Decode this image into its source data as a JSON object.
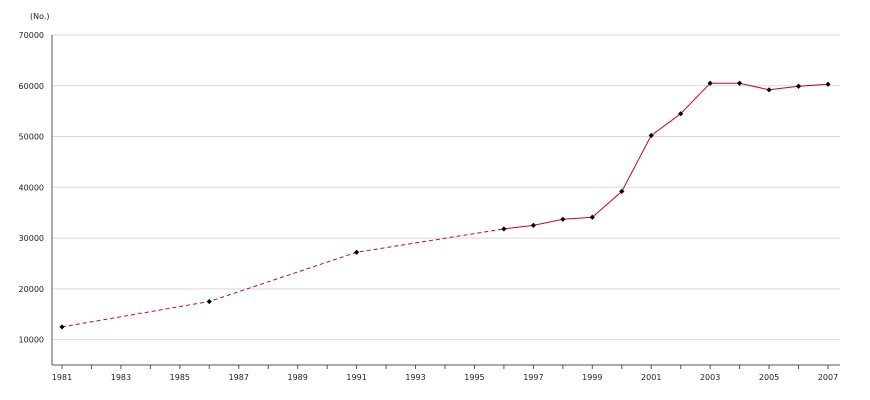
{
  "chart_data": {
    "type": "line",
    "title": "",
    "xlabel": "",
    "ylabel": "",
    "y_unit": "(No.)",
    "xlim": [
      1981,
      2007
    ],
    "ylim": [
      5000,
      70000
    ],
    "y_ticks": [
      10000,
      20000,
      30000,
      40000,
      50000,
      60000,
      70000
    ],
    "x_ticks": [
      1981,
      1983,
      1985,
      1987,
      1989,
      1991,
      1993,
      1995,
      1997,
      1999,
      2001,
      2003,
      2005,
      2007
    ],
    "grid": "horizontal",
    "legend": "none",
    "series": [
      {
        "color": "#cc0033",
        "marker_color": "#000000",
        "segments": [
          {
            "style": "dashed",
            "x": [
              1981,
              1986,
              1991,
              1996
            ],
            "y": [
              12500,
              17500,
              27200,
              31800
            ]
          },
          {
            "style": "solid",
            "x": [
              1996,
              1997,
              1998,
              1999,
              2000,
              2001,
              2002,
              2003,
              2004,
              2005,
              2006,
              2007
            ],
            "y": [
              31800,
              32500,
              33700,
              34100,
              39200,
              50200,
              54500,
              60500,
              60500,
              59200,
              59900,
              60300
            ]
          }
        ]
      }
    ]
  }
}
